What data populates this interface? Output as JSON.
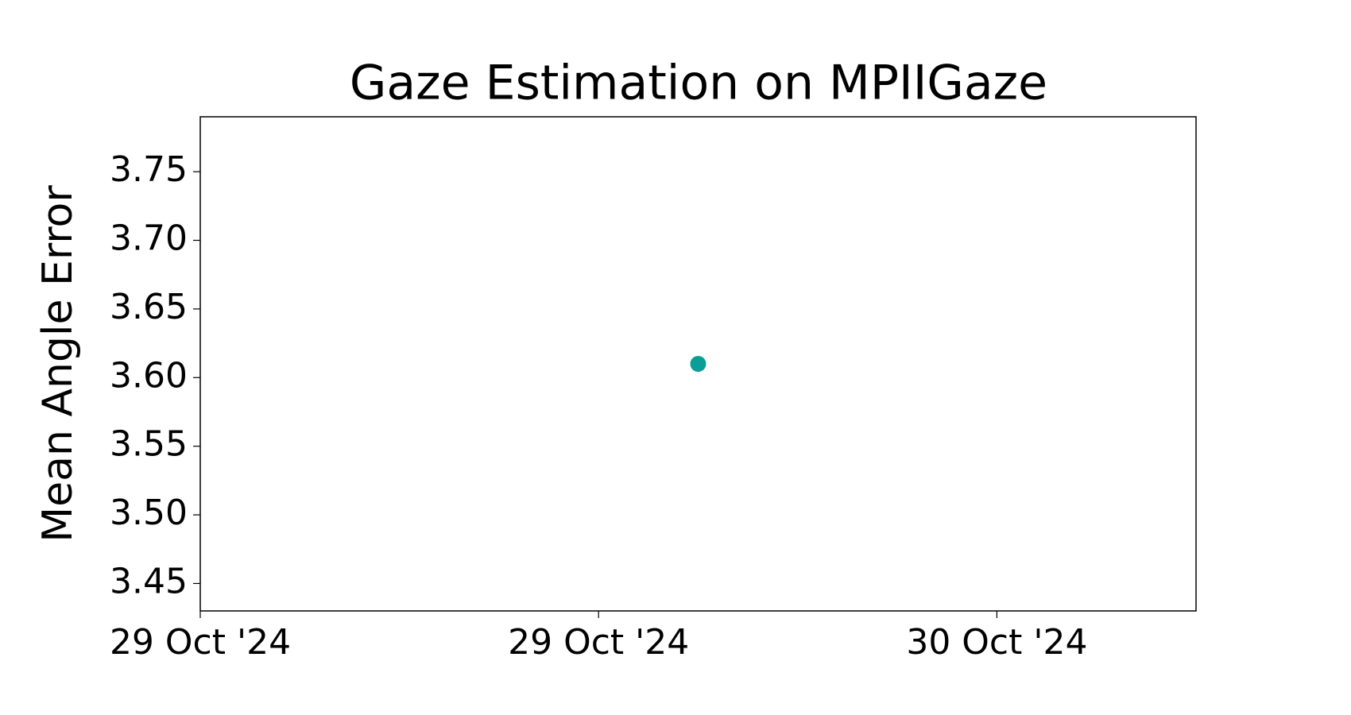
{
  "chart_data": {
    "type": "scatter",
    "title": "Gaze Estimation on MPIIGaze",
    "y_label": "Mean Angle Error",
    "x": [
      20025.625
    ],
    "values": [
      3.61
    ],
    "color": "#0a9e96",
    "xlim": [
      20025,
      20026.25
    ],
    "xticks": [
      {
        "value": 20025,
        "label": "29 Oct '24"
      },
      {
        "value": 20025.5,
        "label": "29 Oct '24"
      },
      {
        "value": 20026,
        "label": "30 Oct '24"
      }
    ],
    "ylim": [
      3.43,
      3.79
    ],
    "yticks": [
      3.45,
      {
        "value": 3.5,
        "label": "3.50"
      },
      3.55,
      {
        "value": 3.6,
        "label": "3.60"
      },
      3.65,
      {
        "value": 3.7,
        "label": "3.70"
      },
      3.75
    ],
    "grid": false
  }
}
